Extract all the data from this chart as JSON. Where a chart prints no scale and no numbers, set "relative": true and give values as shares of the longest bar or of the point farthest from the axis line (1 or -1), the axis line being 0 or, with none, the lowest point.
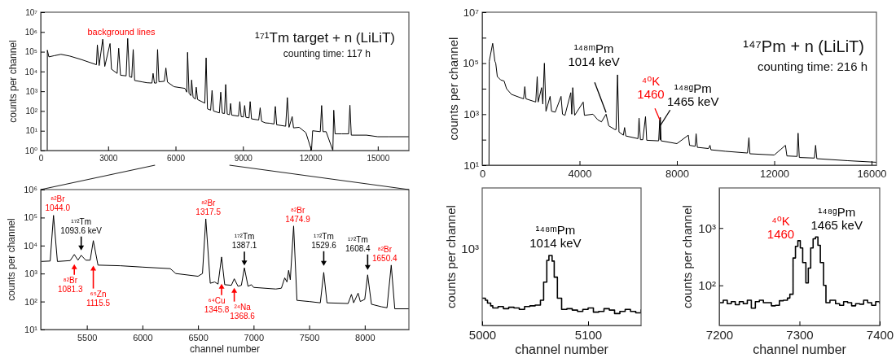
{
  "chart_data": [
    {
      "type": "line",
      "title": "¹⁷¹Tm target + n (LiLiT)",
      "subtitle": "counting time:  117 h",
      "ylabel": "counts per channel",
      "log": "y",
      "color": "#000000",
      "xlim": [
        0,
        16384
      ],
      "xticks": [
        0,
        3000,
        6000,
        9000,
        12000,
        15000
      ],
      "ylim": [
        1,
        10000000
      ],
      "yticks": [
        {
          "value": 1,
          "label": "10⁰"
        },
        {
          "value": 10,
          "label": "10¹"
        },
        {
          "value": 100,
          "label": "10²"
        },
        {
          "value": 1000,
          "label": "10³"
        },
        {
          "value": 10000,
          "label": "10⁴"
        },
        {
          "value": 100000,
          "label": "10⁵"
        },
        {
          "value": 1000000,
          "label": "10⁶"
        },
        {
          "value": 10000000,
          "label": "10⁷"
        }
      ],
      "annotations": [
        "background lines"
      ],
      "x": [
        290,
        295,
        363,
        600,
        900,
        1300,
        1815,
        2480,
        2520,
        2600,
        2760,
        2850,
        3085,
        3150,
        3400,
        3470,
        3550,
        3800,
        3870,
        3950,
        4050,
        4115,
        4180,
        4500,
        4720,
        4950,
        5000,
        5060,
        5150,
        5200,
        5260,
        5500,
        5570,
        5640,
        5930,
        6415,
        6500,
        6535,
        6600,
        6680,
        6715,
        6780,
        6880,
        6920,
        6980,
        7300,
        7360,
        7420,
        7560,
        7625,
        7690,
        7950,
        8010,
        8080,
        8180,
        8230,
        8300,
        8400,
        8450,
        8500,
        8800,
        8860,
        8920,
        9020,
        9075,
        9130,
        9270,
        9320,
        9380,
        9700,
        9765,
        9830,
        10000,
        10200,
        10380,
        10440,
        10500,
        10900,
        10975,
        11050,
        11190,
        11250,
        11500,
        11800,
        12050,
        12100,
        12440,
        12500,
        12560,
        12700,
        13000,
        13040,
        13100,
        13400,
        13700,
        13760,
        13820,
        14500,
        15000,
        15500,
        16384
      ],
      "values": [
        1,
        120000,
        55000,
        63000,
        74000,
        60000,
        40000,
        22000,
        220000,
        20000,
        430000,
        18000,
        260000,
        13000,
        8000,
        150000,
        6500,
        6000,
        470000,
        5500,
        5000,
        130000,
        3500,
        3000,
        2700,
        2600,
        8000,
        2600,
        2600,
        130000,
        3000,
        3200,
        15000,
        2900,
        1700,
        1400,
        900,
        93000,
        800,
        600,
        3700,
        500,
        400,
        1600,
        380,
        250,
        49000,
        130,
        110,
        1100,
        100,
        80,
        900,
        78,
        75,
        2200,
        70,
        65,
        240,
        62,
        55,
        300,
        52,
        50,
        190,
        48,
        45,
        300,
        40,
        35,
        145,
        30,
        25,
        24,
        22,
        170,
        20,
        17,
        480,
        15,
        52,
        14,
        15,
        8,
        1,
        10,
        9,
        190,
        9,
        9,
        1,
        110,
        7,
        7,
        7,
        195,
        6,
        6,
        5,
        5,
        5
      ]
    },
    {
      "type": "line",
      "xlabel": "channel number",
      "ylabel": "counts per channel",
      "log": "y",
      "color": "#000000",
      "xlim": [
        5085,
        8397
      ],
      "xticks": [
        5500,
        6000,
        6500,
        7000,
        7500,
        8000
      ],
      "ylim": [
        10,
        1000000
      ],
      "yticks": [
        {
          "value": 10,
          "label": "10¹"
        },
        {
          "value": 100,
          "label": "10²"
        },
        {
          "value": 1000,
          "label": "10³"
        },
        {
          "value": 10000,
          "label": "10⁴"
        },
        {
          "value": 100000,
          "label": "10⁵"
        },
        {
          "value": 1000000,
          "label": "10⁶"
        }
      ],
      "annotations": [
        {
          "text": "⁸²Br\n1044.0",
          "x": 5200,
          "y": 120000
        },
        {
          "text": "¹⁷²Tm\n1093.6 keV",
          "x": 5449,
          "y": 4500
        },
        {
          "text": "⁸²Br\n1081.3",
          "x": 5387,
          "y": 4800
        },
        {
          "text": "⁶⁵Zn\n1115.5",
          "x": 5558,
          "y": 1900
        },
        {
          "text": "⁸²Br\n1317.5",
          "x": 6570,
          "y": 90000
        },
        {
          "text": "⁶⁴Cu\n1345.8",
          "x": 6712,
          "y": 430
        },
        {
          "text": "²⁴Na\n1368.6",
          "x": 6826,
          "y": 650
        },
        {
          "text": "¹⁷²Tm\n1387.1",
          "x": 6917,
          "y": 1600
        },
        {
          "text": "⁸²Br\n1474.9",
          "x": 7360,
          "y": 50000
        },
        {
          "text": "¹⁷²Tm\n1529.6",
          "x": 7631,
          "y": 1100
        },
        {
          "text": "¹⁷²Tm\n1608.4",
          "x": 8026,
          "y": 900
        },
        {
          "text": "⁸²Br\n1650.4",
          "x": 8238,
          "y": 2000
        }
      ],
      "x": [
        5085,
        5170,
        5200,
        5235,
        5350,
        5387,
        5420,
        5449,
        5490,
        5530,
        5558,
        5600,
        5800,
        6000,
        6250,
        6300,
        6500,
        6540,
        6570,
        6610,
        6650,
        6680,
        6712,
        6740,
        6800,
        6826,
        6860,
        6890,
        6917,
        6950,
        6980,
        7000,
        7200,
        7250,
        7280,
        7300,
        7315,
        7330,
        7360,
        7390,
        7500,
        7600,
        7631,
        7660,
        7850,
        7880,
        7900,
        7940,
        7960,
        8000,
        8026,
        8060,
        8150,
        8200,
        8238,
        8270,
        8397
      ],
      "values": [
        2700,
        2800,
        120000,
        2700,
        2900,
        4800,
        3000,
        4500,
        3000,
        3000,
        15000,
        2000,
        1900,
        1700,
        1500,
        1000,
        800,
        1000,
        90000,
        450,
        500,
        420,
        3900,
        400,
        380,
        650,
        350,
        380,
        1600,
        350,
        400,
        320,
        280,
        300,
        700,
        500,
        1300,
        600,
        50000,
        110,
        100,
        90,
        1100,
        90,
        85,
        180,
        90,
        200,
        100,
        120,
        900,
        80,
        65,
        60,
        2000,
        55,
        55
      ]
    },
    {
      "type": "line",
      "title": "¹⁴⁷Pm + n (LiLiT)",
      "subtitle": "counting time: 216 h",
      "ylabel": "counts per channel",
      "log": "y",
      "color": "#000000",
      "xlim": [
        0,
        16200
      ],
      "xticks": [
        0,
        4000,
        8000,
        12000,
        16000
      ],
      "ylim": [
        10,
        10000000
      ],
      "yticks": [
        {
          "value": 10,
          "label": "10¹"
        },
        {
          "value": 100,
          "label": null
        },
        {
          "value": 1000,
          "label": "10³"
        },
        {
          "value": 10000,
          "label": null
        },
        {
          "value": 100000,
          "label": "10⁵"
        },
        {
          "value": 1000000,
          "label": null
        },
        {
          "value": 10000000,
          "label": "10⁷"
        }
      ],
      "annotations": [
        {
          "text": "¹⁴⁸ᵐPm\n1014 keV",
          "x": 5090,
          "y": 1000
        },
        {
          "text": "⁴⁰K\n1460",
          "x": 7297,
          "y": 600
        },
        {
          "text": "¹⁴⁸ᵍPm\n1465 keV",
          "x": 7320,
          "y": 750
        }
      ],
      "x": [
        278,
        290,
        430,
        520,
        556,
        620,
        760,
        900,
        1000,
        1200,
        1700,
        1750,
        1800,
        2200,
        2260,
        2300,
        2440,
        2490,
        2555,
        2620,
        2790,
        2850,
        3000,
        3240,
        3300,
        3400,
        3640,
        3680,
        3720,
        3800,
        4150,
        4200,
        4550,
        4750,
        4900,
        5090,
        5200,
        5450,
        5500,
        5560,
        5620,
        5800,
        5850,
        5900,
        6400,
        6445,
        6500,
        6600,
        6710,
        6760,
        7250,
        7297,
        7310,
        7320,
        7350,
        8000,
        8470,
        8520,
        8750,
        8790,
        8840,
        9300,
        9360,
        9400,
        10000,
        10900,
        10960,
        11000,
        12000,
        12460,
        12520,
        12940,
        12980,
        13030,
        13650,
        13700,
        13750,
        15000,
        16200
      ],
      "values": [
        10,
        120000,
        600000,
        120000,
        100000,
        30000,
        22000,
        20000,
        10000,
        6000,
        4000,
        12000,
        4000,
        3000,
        30000,
        3000,
        11000,
        2500,
        100000,
        1300,
        5000,
        1300,
        1200,
        5000,
        1000,
        900,
        7000,
        1000,
        11000,
        900,
        3000,
        900,
        1000,
        600,
        500,
        1000,
        350,
        250,
        250,
        35000,
        200,
        150,
        300,
        140,
        110,
        700,
        100,
        100,
        800,
        95,
        90,
        600,
        100,
        750,
        90,
        70,
        150,
        60,
        55,
        170,
        50,
        45,
        60,
        40,
        35,
        30,
        120,
        28,
        25,
        60,
        23,
        22,
        180,
        20,
        19,
        60,
        18,
        15,
        13
      ]
    },
    {
      "type": "step",
      "xlabel": "channel number",
      "ylabel": "counts per channel",
      "relative": true,
      "color": "#000000",
      "xlim": [
        5000,
        5150
      ],
      "xticks": [
        5000,
        5100
      ],
      "annotations": [
        {
          "text": "¹⁴⁸ᵐPm\n1014 keV",
          "x": 5063,
          "y": 1
        },
        "10³"
      ],
      "x": [
        5000,
        5003,
        5005,
        5008,
        5010,
        5015,
        5020,
        5025,
        5030,
        5035,
        5040,
        5045,
        5050,
        5055,
        5058,
        5061,
        5063,
        5066,
        5068,
        5071,
        5075,
        5080,
        5085,
        5090,
        5095,
        5100,
        5105,
        5110,
        5115,
        5120,
        5125,
        5130,
        5135,
        5140,
        5145,
        5150
      ],
      "values": [
        0.39,
        0.36,
        0.32,
        0.28,
        0.25,
        0.27,
        0.24,
        0.26,
        0.25,
        0.23,
        0.27,
        0.28,
        0.29,
        0.36,
        0.62,
        0.93,
        1,
        0.92,
        0.69,
        0.39,
        0.23,
        0.24,
        0.22,
        0.2,
        0.23,
        0.25,
        0.19,
        0.2,
        0.24,
        0.22,
        0.17,
        0.2,
        0.23,
        0.2,
        0.18,
        0.23
      ]
    },
    {
      "type": "step",
      "xlabel": "channel number",
      "ylabel": "counts per channel",
      "log": "y",
      "color": "#000000",
      "xlim": [
        7200,
        7400
      ],
      "xticks": [
        7200,
        7300,
        7400
      ],
      "ylim": [
        20,
        5000
      ],
      "yticks": [
        {
          "value": 100,
          "label": "10²"
        },
        {
          "value": 1000,
          "label": "10³"
        }
      ],
      "annotations": [
        {
          "text": "⁴⁰K\n1460",
          "x": 7298,
          "y": 600
        },
        {
          "text": "¹⁴⁸ᵍPm\n1465 keV",
          "x": 7320,
          "y": 700
        }
      ],
      "x": [
        7200,
        7205,
        7210,
        7215,
        7220,
        7225,
        7230,
        7235,
        7240,
        7245,
        7250,
        7255,
        7260,
        7265,
        7270,
        7275,
        7280,
        7285,
        7288,
        7292,
        7295,
        7298,
        7301,
        7304,
        7308,
        7311,
        7314,
        7317,
        7320,
        7323,
        7326,
        7330,
        7333,
        7338,
        7345,
        7350,
        7355,
        7360,
        7365,
        7370,
        7375,
        7380,
        7385,
        7390,
        7395,
        7400
      ],
      "values": [
        50,
        55,
        48,
        52,
        46,
        52,
        48,
        55,
        40,
        52,
        55,
        50,
        50,
        44,
        45,
        54,
        55,
        60,
        70,
        300,
        480,
        600,
        450,
        250,
        110,
        200,
        450,
        650,
        700,
        500,
        250,
        100,
        50,
        55,
        48,
        45,
        52,
        50,
        44,
        48,
        47,
        55,
        50,
        45,
        52,
        48
      ]
    }
  ]
}
